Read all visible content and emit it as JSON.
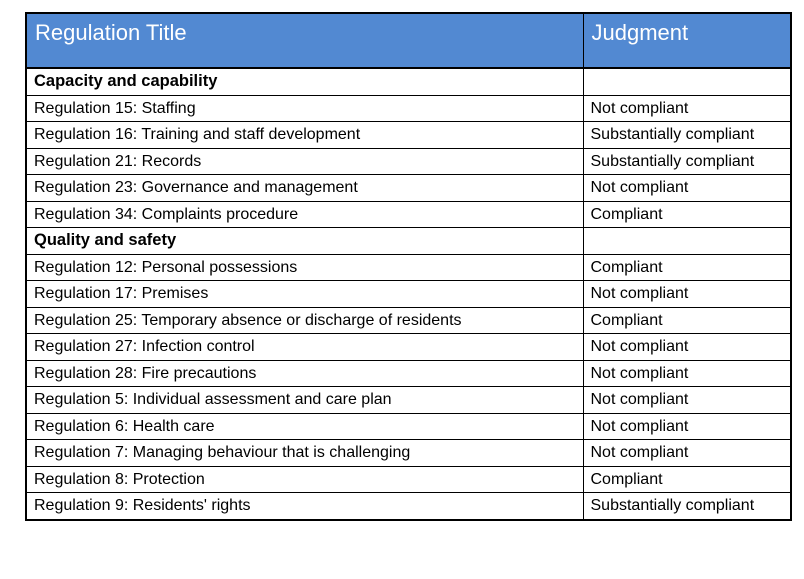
{
  "theme": {
    "header_bg": "#5289D2",
    "header_text": "#FFFFFF",
    "border_color": "#000000",
    "body_text": "#000000"
  },
  "table": {
    "columns": {
      "title": "Regulation Title",
      "judgment": "Judgment"
    },
    "rows": [
      {
        "type": "section",
        "title": "Capacity and capability",
        "judgment": ""
      },
      {
        "type": "row",
        "title": "Regulation 15: Staffing",
        "judgment": "Not compliant"
      },
      {
        "type": "row",
        "title": "Regulation 16: Training and staff development",
        "judgment": "Substantially compliant"
      },
      {
        "type": "row",
        "title": "Regulation 21: Records",
        "judgment": "Substantially compliant"
      },
      {
        "type": "row",
        "title": "Regulation 23: Governance and management",
        "judgment": "Not compliant"
      },
      {
        "type": "row",
        "title": "Regulation 34: Complaints procedure",
        "judgment": "Compliant"
      },
      {
        "type": "section",
        "title": "Quality and safety",
        "judgment": ""
      },
      {
        "type": "row",
        "title": "Regulation 12: Personal possessions",
        "judgment": "Compliant"
      },
      {
        "type": "row",
        "title": "Regulation 17: Premises",
        "judgment": "Not compliant"
      },
      {
        "type": "row",
        "title": "Regulation 25: Temporary absence or discharge of residents",
        "judgment": "Compliant"
      },
      {
        "type": "row",
        "title": "Regulation 27: Infection control",
        "judgment": "Not compliant"
      },
      {
        "type": "row",
        "title": "Regulation 28: Fire precautions",
        "judgment": "Not compliant"
      },
      {
        "type": "row",
        "title": "Regulation 5: Individual assessment and care plan",
        "judgment": "Not compliant"
      },
      {
        "type": "row",
        "title": "Regulation 6: Health care",
        "judgment": "Not compliant"
      },
      {
        "type": "row",
        "title": "Regulation 7: Managing behaviour that is challenging",
        "judgment": "Not compliant"
      },
      {
        "type": "row",
        "title": "Regulation 8: Protection",
        "judgment": "Compliant"
      },
      {
        "type": "row",
        "title": "Regulation 9: Residents' rights",
        "judgment": "Substantially compliant"
      }
    ]
  }
}
